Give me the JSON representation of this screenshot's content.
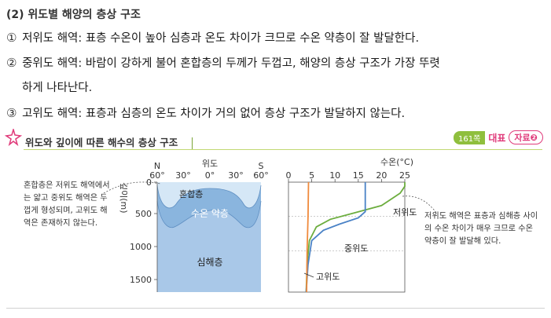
{
  "section_heading": "(2) 위도별 해양의 층상 구조",
  "items": [
    {
      "num": "①",
      "text": "저위도 해역: 표층 수온이 높아 심층과 온도 차이가 크므로 수온 약층이 잘 발달한다."
    },
    {
      "num": "②",
      "text": "중위도 해역: 바람이 강하게 불어 혼합층의 두께가 두껍고, 해양의 층상 구조가 가장 뚜렷"
    },
    {
      "num": "",
      "text": "하게 나타난다."
    },
    {
      "num": "③",
      "text": "고위도 해역: 표층과 심층의 온도 차이가 거의 없어 층상 구조가 발달하지 않는다."
    }
  ],
  "figure": {
    "title": "위도와 깊이에 따른 해수의 층상 구조",
    "ref_page": "161쪽",
    "ref_type": "대표",
    "ref_source": "자료",
    "ref_number": "❷",
    "left_note": "혼합층은 저위도 해역에서는 얇고 중위도 해역은 두껍게 형성되며, 고위도 해역은 존재하지 않는다.",
    "right_note": "저위도 해역은 표층과 심해층 사이의 수온 차이가 매우 크므로 수온 약층이 잘 발달해 있다.",
    "left_diagram": {
      "lat_title": "위도",
      "north": "N",
      "south": "S",
      "lat_ticks": [
        "60°",
        "30°",
        "0°",
        "30°",
        "60°"
      ],
      "depth_axis_label": "깊이(m)",
      "depth_ticks": [
        "0",
        "500",
        "1000",
        "1500"
      ],
      "layer_labels": {
        "mixed": "혼합층",
        "thermocline": "수온 약층",
        "deep": "심해층"
      },
      "colors": {
        "mixed": "#d5e7f6",
        "thermocline": "#8ab5de",
        "deep": "#a9c8e8"
      }
    },
    "chart_data": {
      "type": "line",
      "title": "",
      "xlabel": "수온(°C)",
      "ylabel": "",
      "x_ticks": [
        0,
        5,
        10,
        15,
        20,
        25
      ],
      "xlim": [
        0,
        25
      ],
      "ylim": [
        1600,
        0
      ],
      "series": [
        {
          "name": "저위도",
          "color": "#6cad3e",
          "points": [
            [
              25,
              0
            ],
            [
              25,
              60
            ],
            [
              24,
              160
            ],
            [
              20,
              340
            ],
            [
              14,
              450
            ],
            [
              9,
              540
            ],
            [
              6,
              650
            ],
            [
              4.5,
              850
            ],
            [
              4,
              1200
            ],
            [
              3.8,
              1600
            ]
          ]
        },
        {
          "name": "중위도",
          "color": "#4a82c6",
          "points": [
            [
              16.5,
              0
            ],
            [
              16.5,
              430
            ],
            [
              15,
              520
            ],
            [
              11,
              610
            ],
            [
              7.5,
              700
            ],
            [
              5,
              850
            ],
            [
              4.2,
              1200
            ],
            [
              3.8,
              1600
            ]
          ]
        },
        {
          "name": "고위도",
          "color": "#f08a3c",
          "points": [
            [
              4.3,
              0
            ],
            [
              4.2,
              500
            ],
            [
              4,
              1000
            ],
            [
              3.9,
              1600
            ]
          ]
        }
      ]
    }
  }
}
